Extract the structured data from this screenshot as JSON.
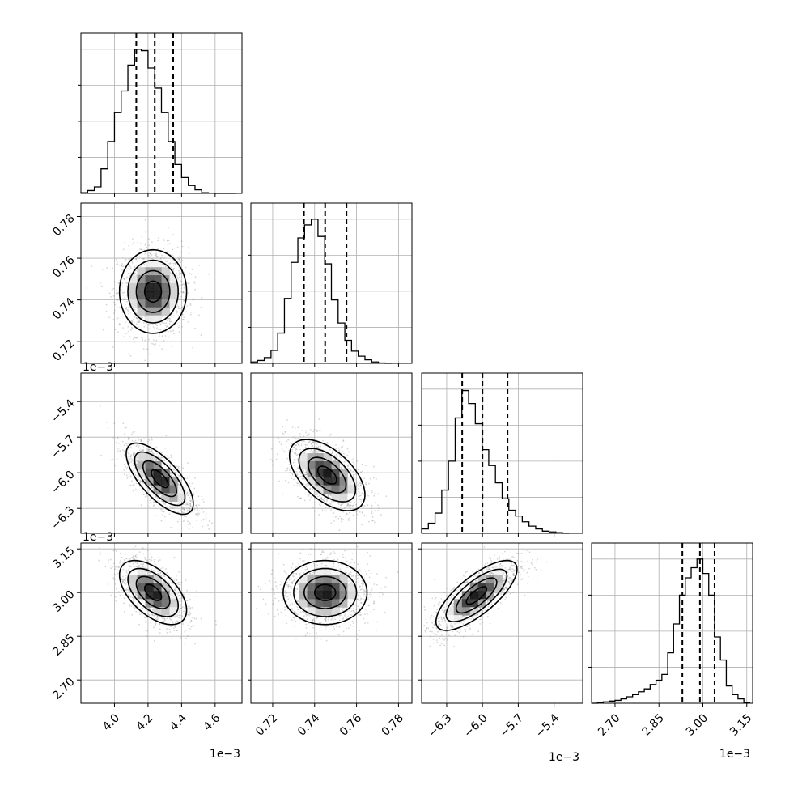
{
  "chart_data": {
    "type": "corner",
    "parameters": 4,
    "grid": true,
    "panels": [
      {
        "type": "histogram",
        "param": 0,
        "xlim": [
          3.8,
          4.76
        ],
        "ylim": [
          0,
          1
        ],
        "grid": true,
        "bin_edges": [
          3.8,
          3.84,
          3.88,
          3.92,
          3.96,
          4.0,
          4.04,
          4.08,
          4.12,
          4.16,
          4.2,
          4.24,
          4.28,
          4.32,
          4.36,
          4.4,
          4.44,
          4.48,
          4.52,
          4.56,
          4.6,
          4.64,
          4.68,
          4.72
        ],
        "heights": [
          0.005,
          0.02,
          0.045,
          0.17,
          0.36,
          0.56,
          0.71,
          0.89,
          1.0,
          0.99,
          0.87,
          0.73,
          0.56,
          0.36,
          0.2,
          0.11,
          0.055,
          0.025,
          0.005,
          0.002,
          0,
          0,
          0
        ],
        "quantiles": [
          4.13,
          4.24,
          4.35
        ]
      },
      {
        "type": "histogram",
        "param": 1,
        "xlim": [
          0.7096,
          0.7864
        ],
        "ylim": [
          0,
          1
        ],
        "grid": true,
        "bin_edges": [
          0.7096,
          0.7128,
          0.716,
          0.7192,
          0.7224,
          0.7256,
          0.7288,
          0.732,
          0.7352,
          0.7384,
          0.7416,
          0.7448,
          0.748,
          0.7512,
          0.7544,
          0.7576,
          0.7608,
          0.764,
          0.7672,
          0.7704,
          0.7736,
          0.7768
        ],
        "heights": [
          0.01,
          0.02,
          0.04,
          0.09,
          0.21,
          0.45,
          0.7,
          0.87,
          0.96,
          1.0,
          0.88,
          0.69,
          0.44,
          0.28,
          0.16,
          0.085,
          0.05,
          0.025,
          0.01,
          0.003,
          0
        ],
        "quantiles": [
          0.7349,
          0.745,
          0.7552
        ]
      },
      {
        "type": "histogram",
        "param": 2,
        "xlim": [
          -6.51,
          -5.16
        ],
        "ylim": [
          0,
          1
        ],
        "grid": true,
        "bin_edges": [
          -6.51,
          -6.4538,
          -6.3975,
          -6.3413,
          -6.285,
          -6.2288,
          -6.1725,
          -6.1163,
          -6.06,
          -6.0038,
          -5.9475,
          -5.8913,
          -5.835,
          -5.7788,
          -5.7225,
          -5.6663,
          -5.61,
          -5.5538,
          -5.4975,
          -5.4413,
          -5.385,
          -5.3288,
          -5.2725
        ],
        "heights": [
          0.03,
          0.07,
          0.14,
          0.3,
          0.5,
          0.8,
          0.99,
          0.9,
          0.76,
          0.58,
          0.47,
          0.35,
          0.24,
          0.16,
          0.12,
          0.08,
          0.05,
          0.03,
          0.015,
          0.01,
          0.005,
          0
        ],
        "quantiles": [
          -6.17,
          -6.0,
          -5.79
        ]
      },
      {
        "type": "histogram",
        "param": 3,
        "xlim": [
          2.62,
          3.17
        ],
        "ylim": [
          0,
          1
        ],
        "grid": true,
        "bin_edges": [
          2.62,
          2.64,
          2.66,
          2.68,
          2.7,
          2.72,
          2.74,
          2.76,
          2.78,
          2.8,
          2.82,
          2.84,
          2.86,
          2.88,
          2.9,
          2.92,
          2.94,
          2.96,
          2.98,
          3.0,
          3.02,
          3.04,
          3.06,
          3.08,
          3.1,
          3.12,
          3.14,
          3.16
        ],
        "heights": [
          0.0,
          0.005,
          0.01,
          0.015,
          0.02,
          0.03,
          0.045,
          0.06,
          0.08,
          0.1,
          0.13,
          0.16,
          0.2,
          0.35,
          0.55,
          0.75,
          0.87,
          0.94,
          1.0,
          0.9,
          0.75,
          0.46,
          0.3,
          0.12,
          0.06,
          0.03,
          0.005
        ],
        "quantiles": [
          2.93,
          2.99,
          3.04
        ]
      },
      {
        "type": "contour2d",
        "x_param": 0,
        "y_param": 1,
        "peak": [
          4.23,
          0.744
        ],
        "sigma_x": 0.1,
        "sigma_y": 0.01,
        "rho": 0.0,
        "peak_value": 1.0
      },
      {
        "type": "contour2d",
        "x_param": 0,
        "y_param": 2,
        "peak": [
          4.27,
          -6.05
        ],
        "sigma_x": 0.1,
        "sigma_y": 0.15,
        "rho": -0.7,
        "peak_value": 1.0
      },
      {
        "type": "contour2d",
        "x_param": 1,
        "y_param": 2,
        "peak": [
          0.746,
          -6.02
        ],
        "sigma_x": 0.009,
        "sigma_y": 0.15,
        "rho": -0.55,
        "peak_value": 1.0
      },
      {
        "type": "contour2d",
        "x_param": 0,
        "y_param": 3,
        "peak": [
          4.23,
          3.0
        ],
        "sigma_x": 0.1,
        "sigma_y": 0.055,
        "rho": -0.55,
        "peak_value": 1.0
      },
      {
        "type": "contour2d",
        "x_param": 1,
        "y_param": 3,
        "peak": [
          0.745,
          3.0
        ],
        "sigma_x": 0.01,
        "sigma_y": 0.055,
        "rho": 0.0,
        "peak_value": 1.0
      },
      {
        "type": "contour2d",
        "x_param": 2,
        "y_param": 3,
        "peak": [
          -6.05,
          2.99
        ],
        "sigma_x": 0.17,
        "sigma_y": 0.06,
        "rho": 0.75,
        "peak_value": 1.0
      }
    ],
    "axes": [
      {
        "param": 0,
        "lim": [
          3.8,
          4.76
        ],
        "ticks": [
          4.0,
          4.2,
          4.4,
          4.6
        ],
        "tick_labels": [
          "4.0",
          "4.2",
          "4.4",
          "4.6"
        ],
        "offset_text": "1e−3"
      },
      {
        "param": 1,
        "lim": [
          0.7096,
          0.7864
        ],
        "ticks": [
          0.72,
          0.74,
          0.76,
          0.78
        ],
        "tick_labels": [
          "0.72",
          "0.74",
          "0.76",
          "0.78"
        ],
        "offset_text": ""
      },
      {
        "param": 2,
        "lim": [
          -6.51,
          -5.16
        ],
        "ticks": [
          -6.3,
          -6.0,
          -5.7,
          -5.4
        ],
        "tick_labels": [
          "−6.3",
          "−6.0",
          "−5.7",
          "−5.4"
        ],
        "offset_text": "1e−3"
      },
      {
        "param": 3,
        "lim": [
          2.62,
          3.17
        ],
        "ticks": [
          2.7,
          2.85,
          3.0,
          3.15
        ],
        "tick_labels": [
          "2.70",
          "2.85",
          "3.00",
          "3.15"
        ],
        "offset_text": "1e−3"
      }
    ]
  }
}
